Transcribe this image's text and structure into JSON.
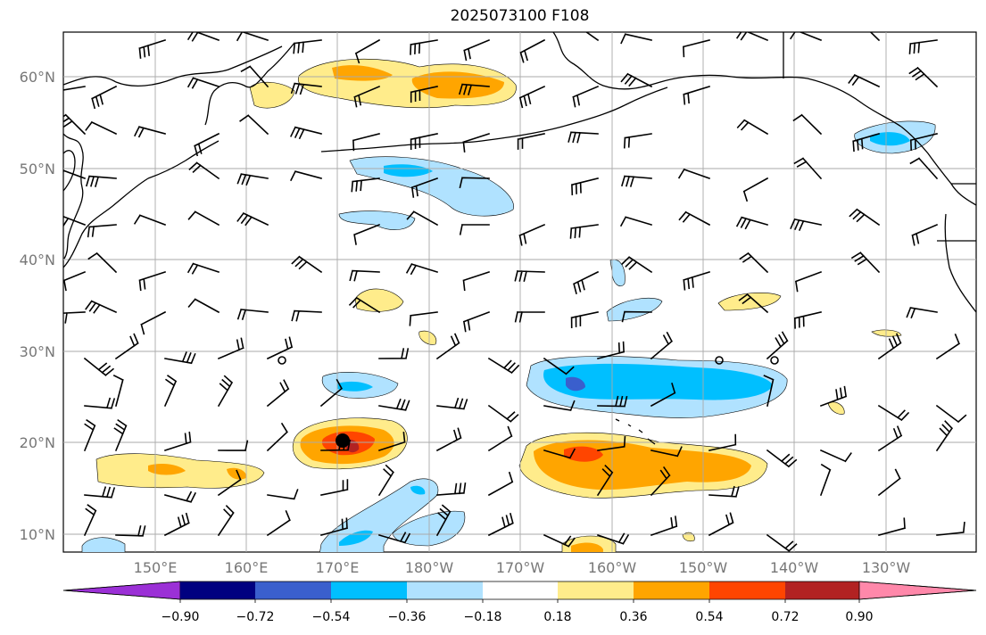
{
  "title": "2025073100 F108",
  "lat_labels": [
    "60°N",
    "50°N",
    "40°N",
    "30°N",
    "20°N",
    "10°N"
  ],
  "lon_labels": [
    "150°E",
    "160°E",
    "170°E",
    "180°W",
    "170°W",
    "160°W",
    "150°W",
    "140°W",
    "130°W"
  ],
  "colorbar": {
    "ticks": [
      "−0.90",
      "−0.72",
      "−0.54",
      "−0.36",
      "−0.18",
      "0.18",
      "0.36",
      "0.54",
      "0.72",
      "0.90"
    ],
    "colors": [
      "#9b30d6",
      "#000080",
      "#3a5fcd",
      "#00bfff",
      "#b0e2ff",
      "#ffffff",
      "#ffec8b",
      "#ffa500",
      "#ff4500",
      "#b22222",
      "#ff88aa"
    ]
  },
  "palette": {
    "pos1": "#ffec8b",
    "pos2": "#ffa500",
    "pos3": "#ff4500",
    "pos4": "#b22222",
    "neg1": "#b0e2ff",
    "neg2": "#00bfff",
    "neg3": "#3a5fcd"
  }
}
